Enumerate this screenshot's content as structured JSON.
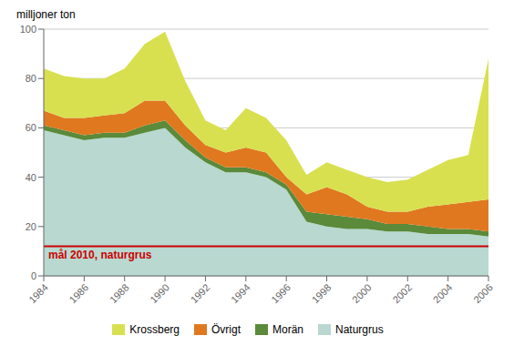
{
  "chart_data": {
    "type": "area",
    "stacked": true,
    "y_label": "milljoner ton",
    "x": [
      1984,
      1985,
      1986,
      1987,
      1988,
      1989,
      1990,
      1991,
      1992,
      1993,
      1994,
      1995,
      1996,
      1997,
      1998,
      1999,
      2000,
      2001,
      2002,
      2003,
      2004,
      2005,
      2006
    ],
    "series": [
      {
        "name": "Naturgrus",
        "color": "#b8d8d0",
        "values": [
          59,
          57,
          55,
          56,
          56,
          58,
          60,
          52,
          46,
          42,
          42,
          40,
          35,
          22,
          20,
          19,
          19,
          18,
          18,
          17,
          17,
          17,
          16
        ]
      },
      {
        "name": "Morän",
        "color": "#5a8a3a",
        "values": [
          2,
          2,
          2,
          2,
          2,
          3,
          3,
          3,
          2,
          2,
          2,
          2,
          2,
          4,
          5,
          5,
          4,
          3,
          3,
          3,
          2,
          2,
          2
        ]
      },
      {
        "name": "Övrigt",
        "color": "#e07820",
        "values": [
          6,
          5,
          7,
          7,
          8,
          10,
          8,
          6,
          5,
          6,
          8,
          8,
          3,
          7,
          11,
          9,
          5,
          5,
          5,
          8,
          10,
          11,
          13
        ]
      },
      {
        "name": "Krossberg",
        "color": "#d8e050",
        "values": [
          17,
          17,
          16,
          15,
          18,
          23,
          28,
          18,
          10,
          9,
          16,
          14,
          15,
          8,
          10,
          10,
          12,
          12,
          13,
          15,
          18,
          19,
          57
        ]
      }
    ],
    "annotations": [
      {
        "type": "hline",
        "y": 12,
        "text": "mål 2010, naturgrus",
        "color": "#cc0000"
      }
    ],
    "xlim": [
      1984,
      2006
    ],
    "xticks": [
      1984,
      1986,
      1988,
      1990,
      1992,
      1994,
      1996,
      1998,
      2000,
      2002,
      2004,
      2006
    ],
    "ylim": [
      0,
      100
    ],
    "yticks": [
      0,
      20,
      40,
      60,
      80,
      100
    ],
    "grid": true,
    "legend": "bottom"
  }
}
